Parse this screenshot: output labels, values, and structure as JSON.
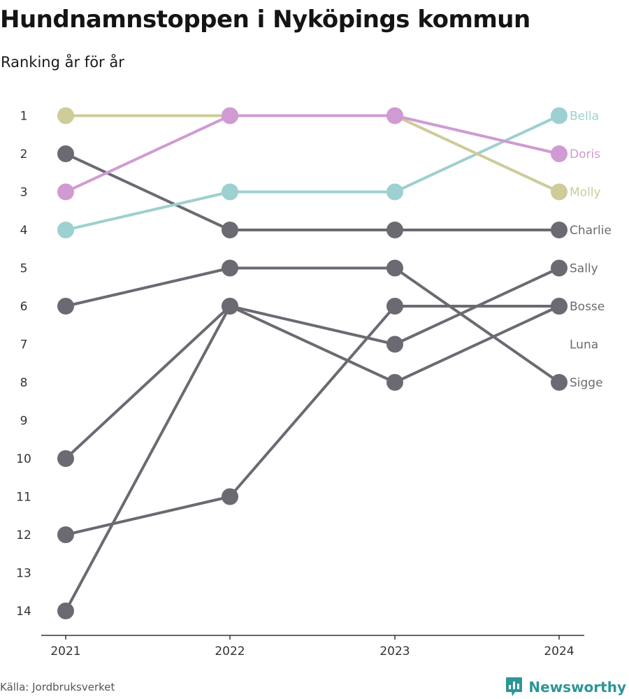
{
  "title": "Hundnamnstoppen i Nyköpings kommun",
  "subtitle": "Ranking år för år",
  "source": "Källa: Jordbruksverket",
  "brand": {
    "name": "Newsworthy",
    "icon": "newsworthy-logo-icon",
    "color": "#2f9597"
  },
  "chart_data": {
    "type": "line",
    "x": [
      "2021",
      "2022",
      "2023",
      "2024"
    ],
    "y_ticks": [
      "1",
      "2",
      "3",
      "4",
      "5",
      "6",
      "7",
      "8",
      "9",
      "10",
      "11",
      "12",
      "13",
      "14"
    ],
    "ylim": [
      1,
      14
    ],
    "y_reversed": true,
    "grid": false,
    "legend": "end-labels-right",
    "series": [
      {
        "name": "Charlie",
        "values": [
          2,
          4,
          4,
          4
        ],
        "color": "#6b6a72"
      },
      {
        "name": "Sally",
        "values": [
          14,
          6,
          7,
          5
        ],
        "color": "#6b6a72"
      },
      {
        "name": "Bosse",
        "values": [
          12,
          11,
          6,
          6
        ],
        "color": "#6b6a72"
      },
      {
        "name": "Luna",
        "values": [
          10,
          6,
          8,
          6
        ],
        "color": "#6b6a72"
      },
      {
        "name": "Sigge",
        "values": [
          6,
          5,
          5,
          8
        ],
        "color": "#6b6a72"
      },
      {
        "name": "Bella",
        "values": [
          4,
          3,
          3,
          1
        ],
        "color": "#9dd0d0"
      },
      {
        "name": "Molly",
        "values": [
          1,
          1,
          1,
          3
        ],
        "color": "#cdcc9a"
      },
      {
        "name": "Doris",
        "values": [
          3,
          1,
          1,
          2
        ],
        "color": "#cf9bd2"
      }
    ],
    "label_order": [
      "Bella",
      "Doris",
      "Molly",
      "Charlie",
      "Sally",
      "Bosse",
      "Luna",
      "Sigge"
    ]
  }
}
